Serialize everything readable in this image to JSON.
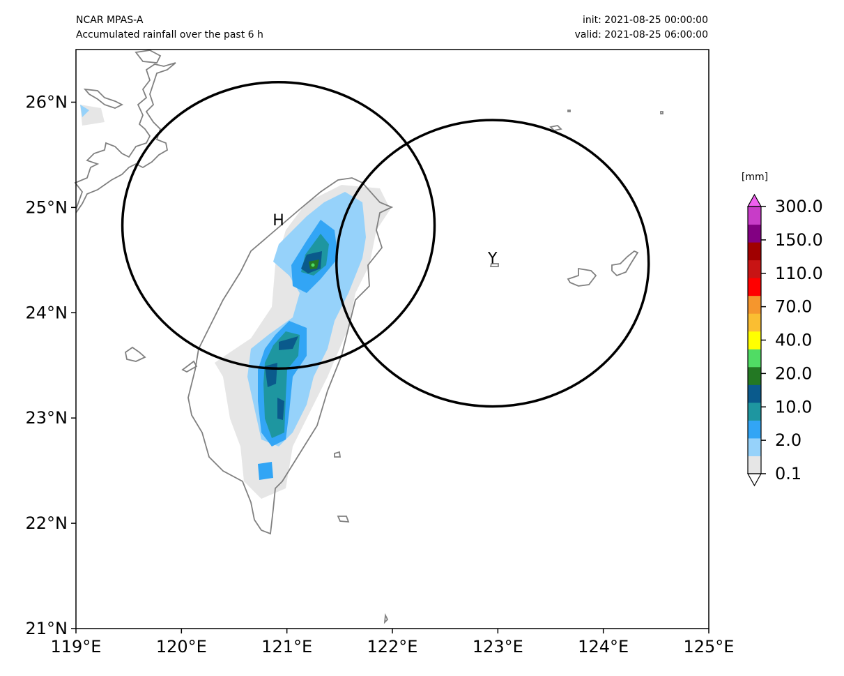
{
  "header": {
    "model": "NCAR MPAS-A",
    "subtitle": "Accumulated rainfall over the past 6 h",
    "init": "init: 2021-08-25 00:00:00",
    "valid": "valid: 2021-08-25 06:00:00"
  },
  "map": {
    "lon_range": [
      119,
      125
    ],
    "lat_range": [
      21,
      26.5
    ],
    "x_ticks": [
      "119°E",
      "120°E",
      "121°E",
      "122°E",
      "123°E",
      "124°E",
      "125°E"
    ],
    "y_ticks": [
      "21°N",
      "22°N",
      "23°N",
      "24°N",
      "25°N",
      "26°N"
    ],
    "coastline_color": "#808080",
    "circles": [
      {
        "label": "H",
        "center_lon": 120.92,
        "center_lat": 24.83,
        "radius_lon": 1.48,
        "radius_lat": 1.36
      },
      {
        "label": "Y",
        "center_lon": 122.95,
        "center_lat": 24.47,
        "radius_lon": 1.48,
        "radius_lat": 1.36
      }
    ]
  },
  "colorbar": {
    "unit": "[mm]",
    "tick_labels": [
      "0.1",
      "2.0",
      "10.0",
      "20.0",
      "40.0",
      "70.0",
      "110.0",
      "150.0",
      "300.0"
    ],
    "colors": [
      "#ffffff",
      "#e6e6e6",
      "#96d2fa",
      "#32a5f5",
      "#1e96a0",
      "#0a5a8c",
      "#237823",
      "#50dc64",
      "#ffff00",
      "#fabe32",
      "#f5962d",
      "#ff0000",
      "#c81414",
      "#a00000",
      "#820082",
      "#c83cc8",
      "#f060f0"
    ]
  }
}
